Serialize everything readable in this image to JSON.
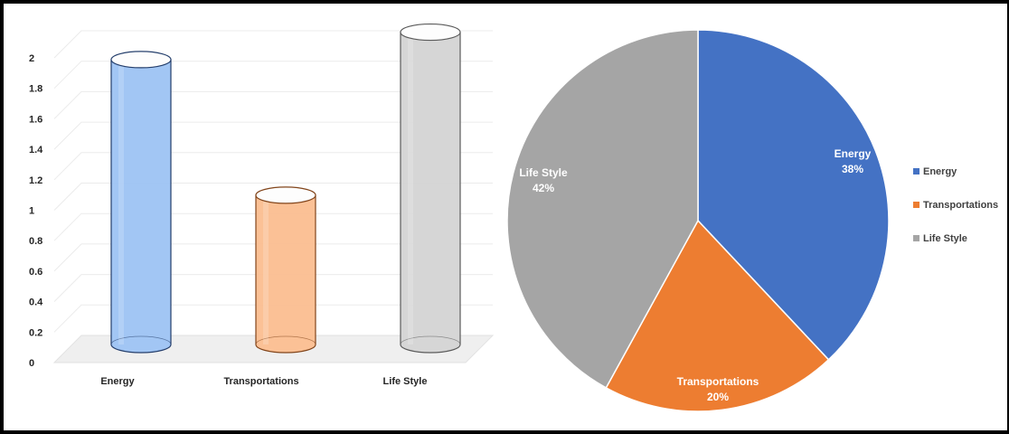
{
  "colors": {
    "energy": "#4472C4",
    "transportations": "#ED7D31",
    "life_style": "#A5A5A5",
    "cyl_energy": "#9DC3F3",
    "cyl_transportations": "#FBBE90",
    "cyl_life_style": "#D4D4D4"
  },
  "chart_data": [
    {
      "type": "bar",
      "style": "3d-cylinder",
      "categories": [
        "Energy",
        "Transportations",
        "Life Style"
      ],
      "values": [
        1.87,
        0.98,
        2.05
      ],
      "ylim": [
        0,
        2
      ],
      "yticks": [
        "0",
        "0.2",
        "0.4",
        "0.6",
        "0.8",
        "1",
        "1.2",
        "1.4",
        "1.6",
        "1.8",
        "2"
      ],
      "grid": true,
      "legend": "none"
    },
    {
      "type": "pie",
      "labels": [
        "Energy",
        "Transportations",
        "Life Style"
      ],
      "values": [
        38,
        20,
        42
      ],
      "data_labels": [
        "38%",
        "20%",
        "42%"
      ],
      "legend": "right"
    }
  ]
}
